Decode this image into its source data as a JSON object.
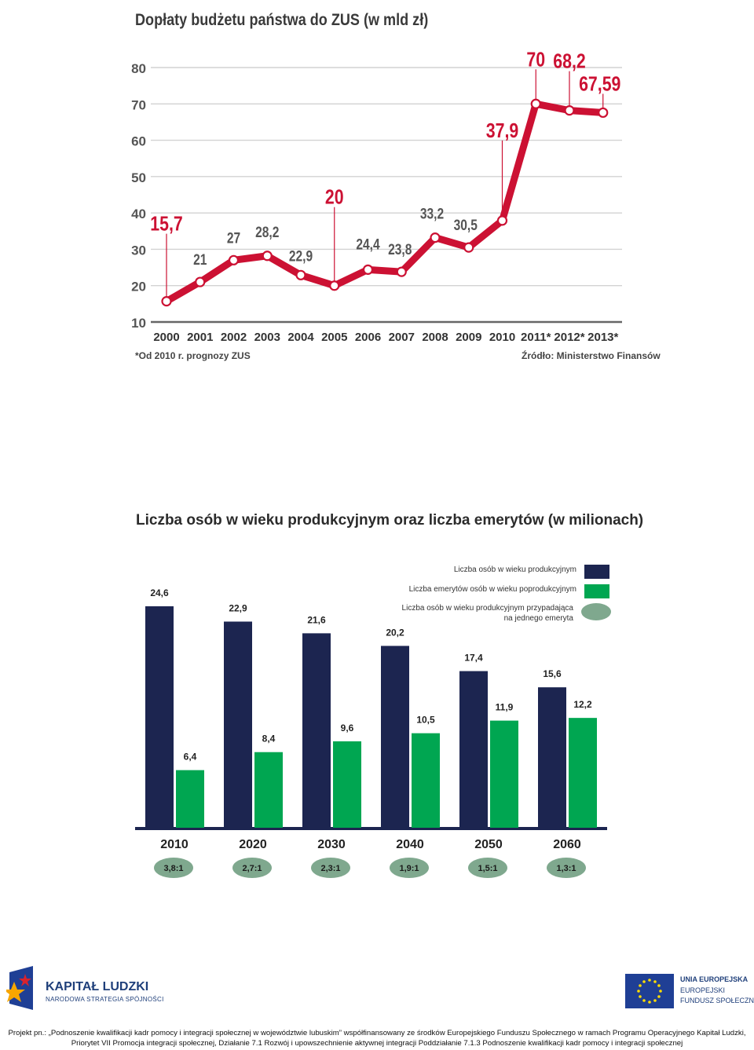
{
  "chart_data": [
    {
      "type": "line",
      "title": "Dopłaty budżetu państwa do ZUS (w mld zł)",
      "xlabel": "",
      "ylabel": "",
      "ylim": [
        10,
        80
      ],
      "yticks": [
        "10",
        "20",
        "30",
        "40",
        "50",
        "60",
        "70",
        "80"
      ],
      "categories": [
        "2000",
        "2001",
        "2002",
        "2003",
        "2004",
        "2005",
        "2006",
        "2007",
        "2008",
        "2009",
        "2010",
        "2011*",
        "2012*",
        "2013*"
      ],
      "values": [
        15.7,
        21,
        27,
        28.2,
        22.9,
        20,
        24.4,
        23.8,
        33.2,
        30.5,
        37.9,
        70,
        68.2,
        67.59
      ],
      "data_labels": [
        "15,7",
        "21",
        "27",
        "28,2",
        "22,9",
        "20",
        "24,4",
        "23,8",
        "33,2",
        "30,5",
        "37,9",
        "70",
        "68,2",
        "67,59"
      ],
      "grid": true,
      "note_left": "*Od 2010 r. prognozy ZUS",
      "note_right": "Źródło: Ministerstwo Finansów",
      "colors": {
        "line": "#cc1133",
        "label": "#cc1133",
        "grid": "#d2d2d2",
        "axis": "#666666"
      }
    },
    {
      "type": "bar",
      "title": "Liczba osób w wieku produkcyjnym oraz liczba emerytów (w milionach)",
      "categories": [
        "2010",
        "2020",
        "2030",
        "2040",
        "2050",
        "2060"
      ],
      "series": [
        {
          "name": "Liczba osób w wieku produkcyjnym",
          "values": [
            24.6,
            22.9,
            21.6,
            20.2,
            17.4,
            15.6
          ],
          "labels": [
            "24,6",
            "22,9",
            "21,6",
            "20,2",
            "17,4",
            "15,6"
          ],
          "color": "#1c2550"
        },
        {
          "name": "Liczba emerytów osób w wieku poprodukcyjnym",
          "values": [
            6.4,
            8.4,
            9.6,
            10.5,
            11.9,
            12.2
          ],
          "labels": [
            "6,4",
            "8,4",
            "9,6",
            "10,5",
            "11,9",
            "12,2"
          ],
          "color": "#00a651"
        }
      ],
      "ratio_legend": [
        "Liczba osób w wieku produkcyjnym przypadająca",
        "na jednego emeryta"
      ],
      "ratio_color": "#7fa88e",
      "ratios": [
        "3,8:1",
        "2,7:1",
        "2,3:1",
        "1,9:1",
        "1,5:1",
        "1,3:1"
      ],
      "ylim": [
        0,
        25
      ],
      "legend_position": "top-right"
    }
  ],
  "footer": {
    "kl_title": "KAPITAŁ LUDZKI",
    "kl_subtitle": "NARODOWA STRATEGIA SPÓJNOŚCI",
    "eu_line1": "UNIA EUROPEJSKA",
    "eu_line2": "EUROPEJSKI",
    "eu_line3": "FUNDUSZ SPOŁECZNY",
    "project_line1": "Projekt pn.: „Podnoszenie kwalifikacji kadr pomocy i integracji społecznej w województwie lubuskim” współfinansowany ze środków Europejskiego Funduszu Społecznego w ramach Programu Operacyjnego Kapitał Ludzki,",
    "project_line2": "Priorytet VII Promocja integracji społecznej, Działanie 7.1 Rozwój i upowszechnienie aktywnej integracji Poddziałanie 7.1.3 Podnoszenie kwalifikacji kadr pomocy i integracji społecznej"
  }
}
